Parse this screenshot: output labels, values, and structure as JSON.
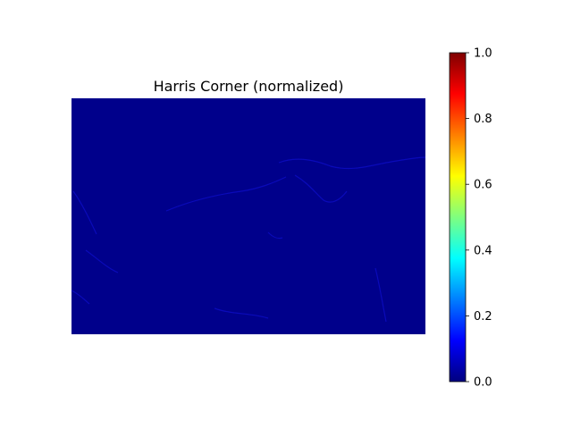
{
  "chart_data": {
    "type": "heatmap",
    "title": "Harris Corner (normalized)",
    "xlabel": "",
    "ylabel": "",
    "axes_visible": false,
    "colormap": "jet",
    "value_range": [
      0,
      1
    ],
    "colorbar": {
      "ticks": [
        0.0,
        0.2,
        0.4,
        0.6,
        0.8,
        1.0
      ],
      "tick_labels": [
        "0.0",
        "0.2",
        "0.4",
        "0.6",
        "0.8",
        "1.0"
      ],
      "colors": [
        "#00007f",
        "#0000ff",
        "#007fff",
        "#00ffff",
        "#7fff7f",
        "#ffff00",
        "#ff7f00",
        "#ff0000",
        "#7f0000"
      ]
    },
    "background_value": 0.0,
    "background_color": "#00008b"
  }
}
